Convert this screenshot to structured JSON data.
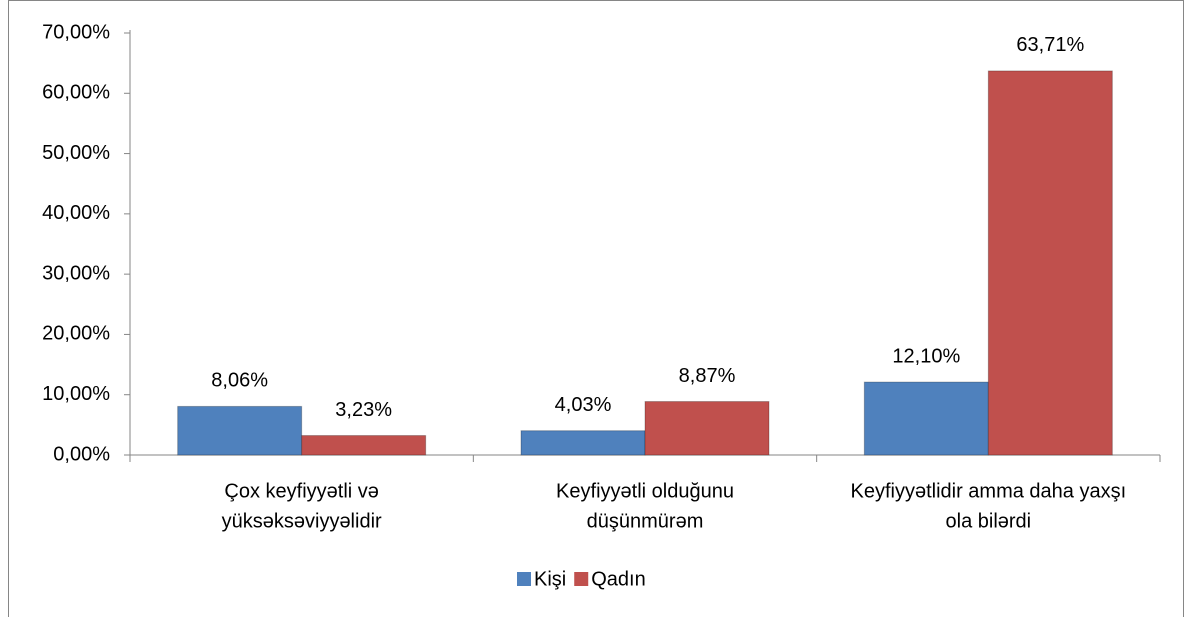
{
  "chart_data": {
    "type": "bar",
    "categories": [
      [
        "Çox keyfiyyətli və",
        "yüksəksəviyyəlidir"
      ],
      [
        "Keyfiyyətli olduğunu",
        "düşünmürəm"
      ],
      [
        "Keyfiyyətlidir amma daha yaxşı",
        "ola bilərdi"
      ]
    ],
    "series": [
      {
        "name": "Kişi",
        "color": "#4f81bd",
        "values": [
          8.06,
          4.03,
          12.1
        ],
        "value_labels": [
          "8,06%",
          "4,03%",
          "12,10%"
        ]
      },
      {
        "name": "Qadın",
        "color": "#c0504d",
        "values": [
          3.23,
          8.87,
          63.71
        ],
        "value_labels": [
          "3,23%",
          "8,87%",
          "63,71%"
        ]
      }
    ],
    "ylim": [
      0,
      70
    ],
    "yticks": [
      {
        "value": 0,
        "label": "0,00%"
      },
      {
        "value": 10,
        "label": "10,00%"
      },
      {
        "value": 20,
        "label": "20,00%"
      },
      {
        "value": 30,
        "label": "30,00%"
      },
      {
        "value": 40,
        "label": "40,00%"
      },
      {
        "value": 50,
        "label": "50,00%"
      },
      {
        "value": 60,
        "label": "60,00%"
      },
      {
        "value": 70,
        "label": "70,00%"
      }
    ],
    "grid": false,
    "legend": "bottom"
  }
}
